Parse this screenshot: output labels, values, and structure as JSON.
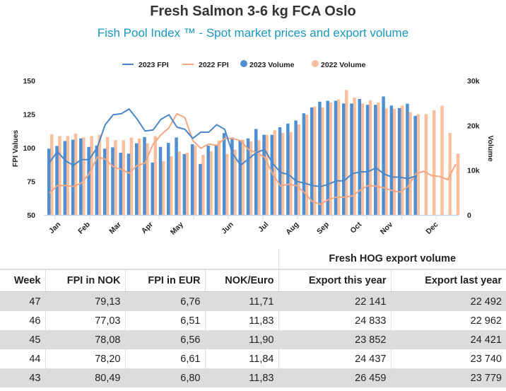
{
  "title": "Fresh Salmon 3-6 kg FCA Oslo",
  "subtitle": "Fish Pool Index ™ - Spot market prices and export volume",
  "chart_data": {
    "type": "bar+line",
    "legend_position": "top",
    "legend": [
      "2023 FPI",
      "2022 FPI",
      "2023 Volume",
      "2022 Volume"
    ],
    "colors": {
      "fpi_2023": "#4a86c8",
      "fpi_2022": "#f4a582",
      "vol_2023": "#4f8fd1",
      "vol_2022": "#fbbf9e"
    },
    "x": "week 1-52",
    "month_labels": [
      "Jan",
      "Feb",
      "Mar",
      "Apr",
      "May",
      "Jun",
      "Jul",
      "Aug",
      "Sep",
      "Oct",
      "Nov",
      "Dec"
    ],
    "y_left": {
      "label": "FPI Values",
      "range": [
        50,
        150
      ],
      "ticks": [
        "150",
        "125",
        "100",
        "75",
        "50"
      ]
    },
    "y_right": {
      "label": "Volume",
      "range": [
        0,
        30000
      ],
      "ticks": [
        "30k",
        "20k",
        "10k",
        "0"
      ]
    },
    "series": [
      {
        "name": "2023 FPI",
        "axis": "left",
        "kind": "line",
        "values": [
          89.1,
          97.2,
          90.4,
          87.0,
          91.2,
          91.2,
          100.4,
          117.2,
          124.6,
          125.3,
          128.9,
          121.4,
          112.5,
          113.2,
          121.2,
          124.6,
          115.4,
          113.7,
          107.0,
          111.6,
          111.6,
          117.2,
          113.7,
          95.6,
          87.0,
          91.8,
          96.5,
          98.8,
          88.6,
          81.6,
          80.2,
          75.1,
          73.7,
          71.9,
          71.1,
          72.8,
          75.4,
          75.4,
          80.7,
          82.1,
          82.1,
          85.1,
          80.49,
          78.2,
          78.08,
          77.03,
          79.13
        ]
      },
      {
        "name": "2022 FPI",
        "axis": "left",
        "kind": "line",
        "values": [
          66.3,
          71.9,
          71.9,
          71.2,
          73.7,
          80.7,
          93.0,
          91.6,
          86.0,
          83.9,
          81.1,
          86.8,
          88.6,
          102.6,
          109.6,
          114.9,
          125.4,
          122.5,
          105.3,
          99.6,
          102.8,
          101.8,
          107.0,
          107.0,
          105.3,
          98.6,
          96.5,
          93.0,
          80.7,
          71.6,
          72.8,
          71.9,
          66.7,
          60.0,
          57.9,
          61.4,
          63.2,
          63.2,
          64.0,
          68.4,
          71.9,
          71.4,
          70.2,
          68.1,
          67.0,
          71.1,
          80.7,
          82.5,
          79.3,
          78.6,
          76.3,
          87.7
        ]
      },
      {
        "name": "2023 Volume",
        "axis": "right",
        "kind": "bar",
        "values": [
          14800,
          15400,
          16500,
          16800,
          17100,
          15200,
          15500,
          14800,
          15100,
          13900,
          13700,
          16000,
          17400,
          11700,
          15200,
          16100,
          17300,
          13600,
          15800,
          11400,
          15500,
          15600,
          18300,
          17300,
          16700,
          17100,
          19200,
          17900,
          17900,
          19600,
          20400,
          21100,
          22700,
          24000,
          25300,
          25500,
          25500,
          24900,
          24900,
          25900,
          24600,
          24600,
          26459,
          24437,
          23852,
          24833,
          22141
        ]
      },
      {
        "name": "2022 Volume",
        "axis": "right",
        "kind": "bar",
        "values": [
          18000,
          17600,
          17600,
          18200,
          17300,
          17600,
          17900,
          17400,
          16700,
          16700,
          17300,
          17100,
          16000,
          17600,
          12000,
          13100,
          14200,
          13900,
          15500,
          13400,
          14200,
          16600,
          13600,
          14600,
          16800,
          16400,
          16700,
          17900,
          18900,
          18300,
          18500,
          20200,
          22400,
          24200,
          24000,
          25100,
          25800,
          27900,
          26200,
          24900,
          25600,
          25100,
          23779,
          23740,
          24421,
          22962,
          22492,
          22500,
          23400,
          24400,
          18300,
          13700
        ]
      }
    ]
  },
  "table": {
    "group_header": "Fresh HOG export volume",
    "columns": [
      "Week",
      "FPI in NOK",
      "FPI in EUR",
      "NOK/Euro",
      "Export this year",
      "Export last year"
    ],
    "rows": [
      [
        "47",
        "79,13",
        "6,76",
        "11,71",
        "22 141",
        "22 492"
      ],
      [
        "46",
        "77,03",
        "6,51",
        "11,83",
        "24 833",
        "22 962"
      ],
      [
        "45",
        "78,08",
        "6,56",
        "11,90",
        "23 852",
        "24 421"
      ],
      [
        "44",
        "78,20",
        "6,61",
        "11,84",
        "24 437",
        "23 740"
      ],
      [
        "43",
        "80,49",
        "6,80",
        "11,83",
        "26 459",
        "23 779"
      ]
    ]
  }
}
